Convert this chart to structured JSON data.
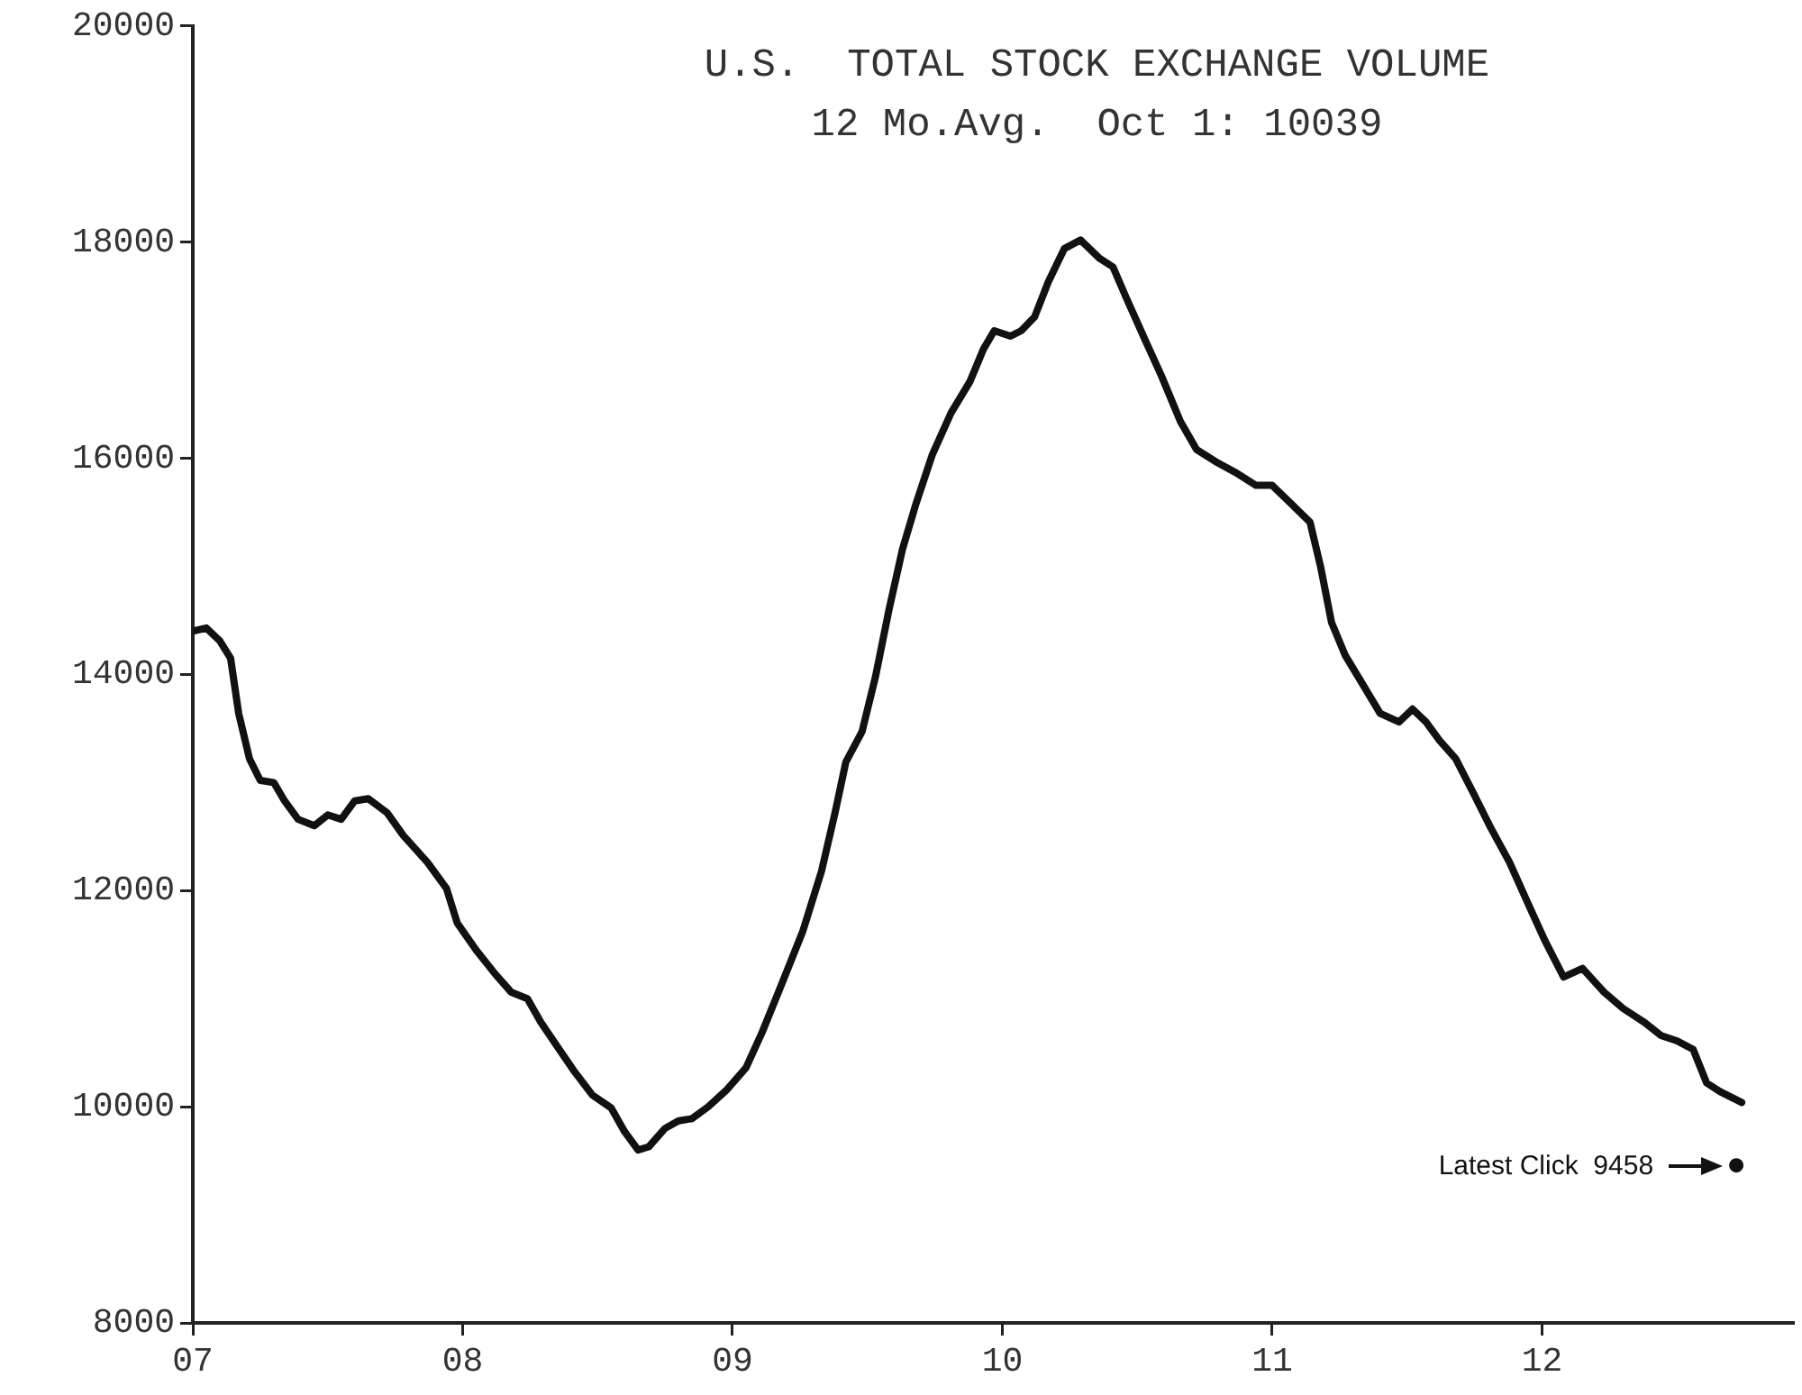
{
  "chart_data": {
    "type": "line",
    "title": "U.S.  TOTAL STOCK EXCHANGE VOLUME",
    "subtitle": "12 Mo.Avg.  Oct 1: 10039",
    "series": [
      {
        "marker": "none",
        "color": "#111111",
        "x": [
          7.0,
          7.05,
          7.1,
          7.14,
          7.17,
          7.21,
          7.25,
          7.3,
          7.34,
          7.39,
          7.45,
          7.5,
          7.55,
          7.6,
          7.65,
          7.72,
          7.78,
          7.87,
          7.94,
          7.98,
          8.05,
          8.12,
          8.18,
          8.24,
          8.29,
          8.35,
          8.41,
          8.48,
          8.55,
          8.6,
          8.65,
          8.69,
          8.75,
          8.8,
          8.85,
          8.91,
          8.98,
          9.05,
          9.11,
          9.18,
          9.26,
          9.33,
          9.38,
          9.42,
          9.48,
          9.53,
          9.58,
          9.63,
          9.68,
          9.74,
          9.81,
          9.88,
          9.93,
          9.97,
          10.03,
          10.07,
          10.12,
          10.17,
          10.23,
          10.29,
          10.36,
          10.41,
          10.46,
          10.53,
          10.59,
          10.66,
          10.72,
          10.79,
          10.87,
          10.94,
          11.0,
          11.07,
          11.14,
          11.18,
          11.22,
          11.27,
          11.34,
          11.4,
          11.47,
          11.52,
          11.57,
          11.62,
          11.68,
          11.75,
          11.81,
          11.88,
          11.95,
          12.01,
          12.08,
          12.15,
          12.23,
          12.3,
          12.38,
          12.44,
          12.5,
          12.56,
          12.61,
          12.66,
          12.74
        ],
        "values": [
          14400,
          14430,
          14310,
          14150,
          13640,
          13220,
          13020,
          13000,
          12830,
          12660,
          12600,
          12700,
          12660,
          12830,
          12850,
          12720,
          12510,
          12260,
          12020,
          11700,
          11450,
          11230,
          11060,
          11000,
          10780,
          10560,
          10340,
          10110,
          9990,
          9770,
          9600,
          9630,
          9800,
          9870,
          9890,
          10000,
          10160,
          10360,
          10690,
          11120,
          11620,
          12180,
          12720,
          13190,
          13470,
          13980,
          14600,
          15160,
          15580,
          16030,
          16420,
          16710,
          17010,
          17180,
          17130,
          17180,
          17310,
          17630,
          17940,
          18020,
          17850,
          17770,
          17480,
          17090,
          16760,
          16340,
          16080,
          15970,
          15860,
          15750,
          15750,
          15580,
          15410,
          14990,
          14480,
          14180,
          13890,
          13640,
          13560,
          13680,
          13560,
          13390,
          13220,
          12880,
          12580,
          12260,
          11870,
          11540,
          11200,
          11280,
          11060,
          10910,
          10780,
          10660,
          10610,
          10530,
          10220,
          10140,
          10040
        ]
      },
      {
        "type": "scatter",
        "marker": "circle",
        "color": "#111111",
        "x": [
          12.72
        ],
        "values": [
          9458
        ]
      }
    ],
    "annotations": [
      "Latest Click  9458"
    ],
    "xlim": [
      7,
      12.93
    ],
    "xticks": [
      {
        "value": 7,
        "label": "07"
      },
      {
        "value": 8,
        "label": "08"
      },
      {
        "value": 9,
        "label": "09"
      },
      {
        "value": 10,
        "label": "10"
      },
      {
        "value": 11,
        "label": "11"
      },
      {
        "value": 12,
        "label": "12"
      }
    ],
    "ylim": [
      8000,
      20000
    ],
    "yticks": [
      8000,
      10000,
      12000,
      14000,
      16000,
      18000,
      20000
    ],
    "legend": false,
    "line_style": "solid"
  }
}
